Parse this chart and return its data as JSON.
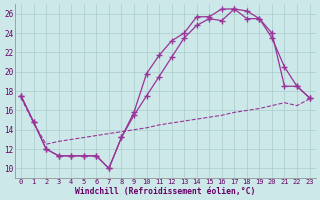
{
  "xlabel": "Windchill (Refroidissement éolien,°C)",
  "background_color": "#cce8e8",
  "line_color": "#993399",
  "xlim": [
    -0.5,
    23.5
  ],
  "ylim": [
    9.0,
    27.0
  ],
  "yticks": [
    10,
    12,
    14,
    16,
    18,
    20,
    22,
    24,
    26
  ],
  "xticks": [
    0,
    1,
    2,
    3,
    4,
    5,
    6,
    7,
    8,
    9,
    10,
    11,
    12,
    13,
    14,
    15,
    16,
    17,
    18,
    19,
    20,
    21,
    22,
    23
  ],
  "line1_x": [
    0,
    1,
    2,
    3,
    4,
    5,
    6,
    7,
    8,
    9,
    10,
    11,
    12,
    13,
    14,
    15,
    16,
    17,
    18,
    19,
    20,
    21,
    22,
    23
  ],
  "line1_y": [
    17.5,
    14.8,
    12.0,
    11.3,
    11.3,
    11.3,
    11.3,
    10.0,
    13.2,
    15.8,
    19.8,
    21.7,
    23.2,
    24.0,
    25.7,
    25.7,
    26.5,
    26.5,
    25.5,
    25.5,
    24.0,
    18.5,
    18.5,
    17.3
  ],
  "line2_x": [
    0,
    1,
    2,
    3,
    4,
    5,
    6,
    7,
    8,
    9,
    10,
    11,
    12,
    13,
    14,
    15,
    16,
    17,
    18,
    19,
    20,
    21,
    22,
    23
  ],
  "line2_y": [
    17.5,
    14.8,
    12.0,
    11.3,
    11.3,
    11.3,
    11.3,
    10.0,
    13.2,
    15.5,
    17.5,
    19.5,
    21.5,
    23.5,
    24.8,
    25.5,
    25.3,
    26.5,
    26.3,
    25.5,
    23.5,
    20.5,
    18.5,
    17.3
  ],
  "line3_x": [
    0,
    1,
    2,
    3,
    4,
    5,
    6,
    7,
    8,
    9,
    10,
    11,
    12,
    13,
    14,
    15,
    16,
    17,
    18,
    19,
    20,
    21,
    22,
    23
  ],
  "line3_y": [
    17.3,
    14.7,
    12.5,
    12.8,
    13.0,
    13.2,
    13.4,
    13.6,
    13.8,
    14.0,
    14.2,
    14.5,
    14.7,
    14.9,
    15.1,
    15.3,
    15.5,
    15.8,
    16.0,
    16.2,
    16.5,
    16.8,
    16.5,
    17.2
  ]
}
